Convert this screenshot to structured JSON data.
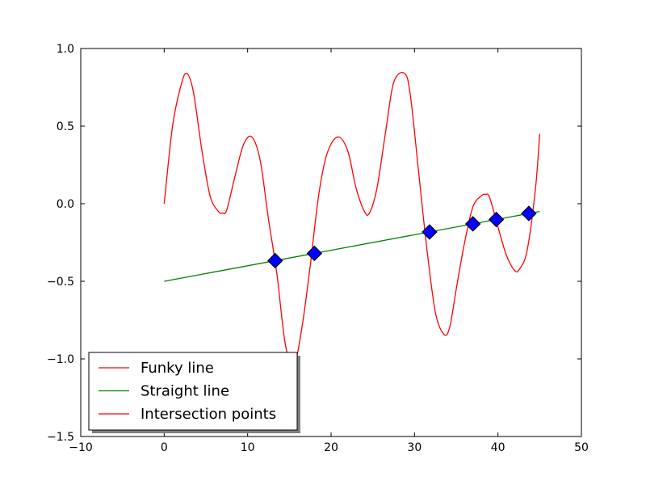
{
  "chart_data": {
    "type": "line",
    "title": "",
    "xlabel": "",
    "ylabel": "",
    "xlim": [
      -10,
      50
    ],
    "ylim": [
      -1.5,
      1.0
    ],
    "xticks": [
      -10,
      0,
      10,
      20,
      30,
      40,
      50
    ],
    "yticks": [
      -1.5,
      -1.0,
      -0.5,
      0.0,
      0.5,
      1.0
    ],
    "xtick_labels": [
      "−10",
      "0",
      "10",
      "20",
      "30",
      "40",
      "50"
    ],
    "ytick_labels": [
      "−1.5",
      "−1.0",
      "−0.5",
      "0.0",
      "0.5",
      "1.0"
    ],
    "grid": false,
    "legend_position": "lower-left",
    "series": [
      {
        "name": "Funky line",
        "color": "#ff0000",
        "kind": "line",
        "x": [
          0,
          1,
          2,
          2.7,
          3.5,
          4.5,
          5.5,
          6.5,
          7,
          7.5,
          8.5,
          9.5,
          10.5,
          11.5,
          12.5,
          13.5,
          14.5,
          15.5,
          16.5,
          17.5,
          18.5,
          19.5,
          20.8,
          22,
          23,
          24,
          24.6,
          25.5,
          26.5,
          27.5,
          28.8,
          29.5,
          30.5,
          31.5,
          32.5,
          33.5,
          34.2,
          35,
          36,
          37,
          38,
          38.5,
          39,
          40,
          41,
          42,
          42.6,
          43.5,
          44.5,
          45
        ],
        "y": [
          0.0,
          0.5,
          0.76,
          0.84,
          0.72,
          0.35,
          0.05,
          -0.05,
          -0.06,
          -0.04,
          0.18,
          0.38,
          0.43,
          0.28,
          -0.1,
          -0.45,
          -0.9,
          -1.05,
          -0.8,
          -0.4,
          0.05,
          0.32,
          0.43,
          0.34,
          0.1,
          -0.05,
          -0.06,
          0.1,
          0.45,
          0.78,
          0.84,
          0.7,
          0.2,
          -0.3,
          -0.7,
          -0.84,
          -0.8,
          -0.55,
          -0.25,
          -0.02,
          0.05,
          0.06,
          0.04,
          -0.15,
          -0.33,
          -0.43,
          -0.42,
          -0.3,
          0.1,
          0.45
        ]
      },
      {
        "name": "Straight line",
        "color": "#008000",
        "kind": "line",
        "x": [
          0,
          45
        ],
        "y": [
          -0.5,
          -0.05
        ]
      },
      {
        "name": "Intersection points",
        "color": "#ff0000",
        "marker_fill": "#0000ff",
        "kind": "markers",
        "x": [
          13.3,
          18.0,
          31.8,
          37.0,
          39.8,
          43.7
        ],
        "y": [
          -0.367,
          -0.32,
          -0.182,
          -0.13,
          -0.102,
          -0.063
        ]
      }
    ],
    "legend": [
      "Funky line",
      "Straight line",
      "Intersection points"
    ]
  }
}
